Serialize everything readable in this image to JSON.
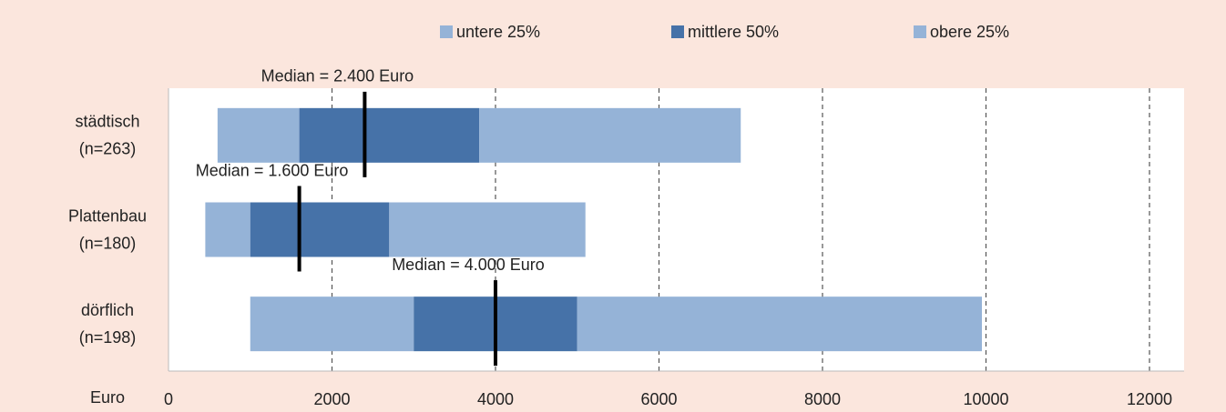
{
  "chart_data": {
    "type": "range_bar",
    "categories": [
      [
        "städtisch",
        "(n=263)"
      ],
      [
        "Plattenbau",
        "(n=180)"
      ],
      [
        "dörflich",
        "(n=198)"
      ]
    ],
    "series": [
      {
        "name": "untere 25%",
        "color": "#95b3d7",
        "values": [
          [
            600,
            1600
          ],
          [
            450,
            1000
          ],
          [
            1000,
            3000
          ]
        ]
      },
      {
        "name": "mittlere 50%",
        "color": "#4672a8",
        "values": [
          [
            1600,
            3800
          ],
          [
            1000,
            2700
          ],
          [
            3000,
            5000
          ]
        ]
      },
      {
        "name": "obere 25%",
        "color": "#95b3d7",
        "values": [
          [
            3800,
            7000
          ],
          [
            2700,
            5100
          ],
          [
            5000,
            9950
          ]
        ]
      }
    ],
    "median": [
      2400,
      1600,
      4000
    ],
    "median_labels": [
      "Median = 2.400 Euro",
      "Median = 1.600 Euro",
      "Median = 4.000 Euro"
    ],
    "xlabel": "Euro",
    "xlim": [
      0,
      12000
    ],
    "xticks": [
      0,
      2000,
      4000,
      6000,
      8000,
      10000,
      12000
    ],
    "grid": true
  }
}
